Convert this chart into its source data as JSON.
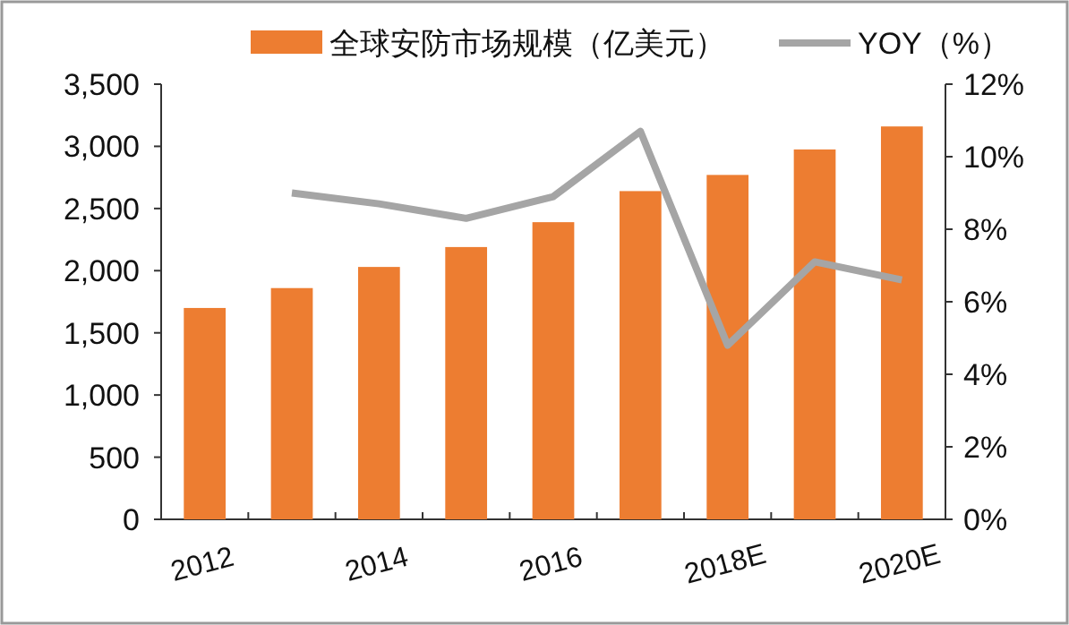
{
  "chart_data": {
    "type": "bar",
    "categories": [
      "2012",
      null,
      "2014",
      null,
      "2016",
      null,
      "2018E",
      null,
      "2020E"
    ],
    "series": [
      {
        "name": "全球安防市场规模（亿美元）",
        "color": "#ed7d31",
        "values": [
          1700,
          1860,
          2030,
          2190,
          2390,
          2640,
          2770,
          2975,
          3160
        ]
      },
      {
        "name": "YOY（%）",
        "type": "line",
        "axis": "y2",
        "color": "#a5a5a5",
        "values": [
          null,
          9.0,
          8.7,
          8.3,
          8.9,
          10.7,
          4.8,
          7.1,
          6.6
        ]
      }
    ],
    "ylim": [
      0,
      3500
    ],
    "yticks": [
      0,
      {
        "value": 500,
        "label": "500"
      },
      {
        "value": 1000,
        "label": "1,000"
      },
      {
        "value": 1500,
        "label": "1,500"
      },
      {
        "value": 2000,
        "label": "2,000"
      },
      {
        "value": 2500,
        "label": "2,500"
      },
      {
        "value": 3000,
        "label": "3,000"
      },
      {
        "value": 3500,
        "label": "3,500"
      }
    ],
    "y2lim": [
      0,
      12
    ],
    "y2ticks": [
      {
        "value": 0,
        "label": "0%"
      },
      {
        "value": 2,
        "label": "2%"
      },
      {
        "value": 4,
        "label": "4%"
      },
      {
        "value": 6,
        "label": "6%"
      },
      {
        "value": 8,
        "label": "8%"
      },
      {
        "value": 10,
        "label": "10%"
      },
      {
        "value": 12,
        "label": "12%"
      }
    ],
    "legend": "top"
  }
}
